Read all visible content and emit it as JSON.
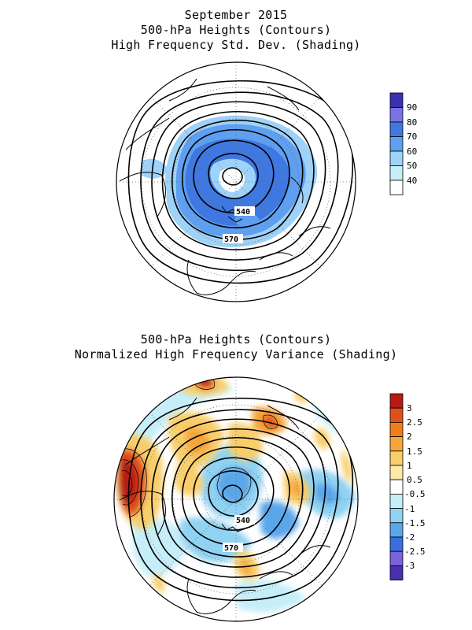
{
  "top_panel": {
    "title_lines": [
      "September 2015",
      "500-hPa Heights (Contours)",
      "High Frequency Std. Dev. (Shading)"
    ],
    "contour_labels": [
      "540",
      "570"
    ],
    "colorbar": {
      "labels": [
        "90",
        "80",
        "70",
        "60",
        "50",
        "40"
      ],
      "colors": [
        "#3a30b0",
        "#7a72e0",
        "#3f78e0",
        "#5f9ff0",
        "#9fd2f8",
        "#ffffff"
      ]
    }
  },
  "bottom_panel": {
    "title_lines": [
      "500-hPa Heights (Contours)",
      "Normalized High Frequency Variance (Shading)"
    ],
    "contour_labels": [
      "540",
      "570"
    ],
    "colorbar": {
      "labels": [
        "3",
        "2.5",
        "2",
        "1.5",
        "1",
        "0.5",
        "-0.5",
        "-1",
        "-1.5",
        "-2",
        "-2.5",
        "-3"
      ],
      "colors": [
        "#b81a12",
        "#e0501a",
        "#f07e18",
        "#f5a63a",
        "#f8ce6a",
        "#fbeaa8",
        "#ffffff",
        "#c6eef8",
        "#8fd2f2",
        "#5aa6ea",
        "#3a6ee0",
        "#7a62d8",
        "#4a30b0"
      ]
    }
  }
}
